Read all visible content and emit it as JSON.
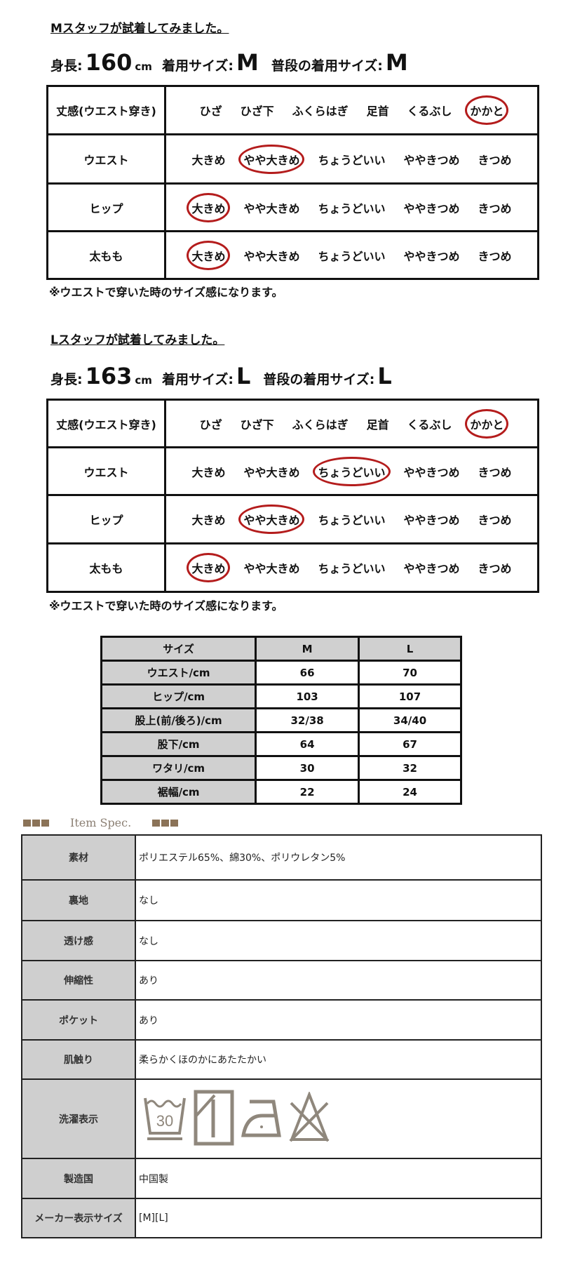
{
  "fit_sections": [
    {
      "title": "Mスタッフが試着してみました。",
      "height_label": "身長:",
      "height": "160",
      "height_unit": "cm",
      "size_label": "着用サイズ:",
      "size": "M",
      "usual_label": "普段の着用サイズ:",
      "usual": "M",
      "rows": [
        {
          "label": "丈感(ウエスト穿き)",
          "options": [
            "ひざ",
            "ひざ下",
            "ふくらはぎ",
            "足首",
            "くるぶし",
            "かかと"
          ],
          "selected": 5
        },
        {
          "label": "ウエスト",
          "options": [
            "大きめ",
            "やや大きめ",
            "ちょうどいい",
            "ややきつめ",
            "きつめ"
          ],
          "selected": 1
        },
        {
          "label": "ヒップ",
          "options": [
            "大きめ",
            "やや大きめ",
            "ちょうどいい",
            "ややきつめ",
            "きつめ"
          ],
          "selected": 0
        },
        {
          "label": "太もも",
          "options": [
            "大きめ",
            "やや大きめ",
            "ちょうどいい",
            "ややきつめ",
            "きつめ"
          ],
          "selected": 0
        }
      ],
      "note": "※ウエストで穿いた時のサイズ感になります。"
    },
    {
      "title": "Lスタッフが試着してみました。",
      "height_label": "身長:",
      "height": "163",
      "height_unit": "cm",
      "size_label": "着用サイズ:",
      "size": "L",
      "usual_label": "普段の着用サイズ:",
      "usual": "L",
      "rows": [
        {
          "label": "丈感(ウエスト穿き)",
          "options": [
            "ひざ",
            "ひざ下",
            "ふくらはぎ",
            "足首",
            "くるぶし",
            "かかと"
          ],
          "selected": 5
        },
        {
          "label": "ウエスト",
          "options": [
            "大きめ",
            "やや大きめ",
            "ちょうどいい",
            "ややきつめ",
            "きつめ"
          ],
          "selected": 2
        },
        {
          "label": "ヒップ",
          "options": [
            "大きめ",
            "やや大きめ",
            "ちょうどいい",
            "ややきつめ",
            "きつめ"
          ],
          "selected": 1
        },
        {
          "label": "太もも",
          "options": [
            "大きめ",
            "やや大きめ",
            "ちょうどいい",
            "ややきつめ",
            "きつめ"
          ],
          "selected": 0
        }
      ],
      "note": "※ウエストで穿いた時のサイズ感になります。"
    }
  ],
  "size_table": {
    "headers": [
      "サイズ",
      "M",
      "L"
    ],
    "rows": [
      [
        "ウエスト/cm",
        "66",
        "70"
      ],
      [
        "ヒップ/cm",
        "103",
        "107"
      ],
      [
        "股上(前/後ろ)/cm",
        "32/38",
        "34/40"
      ],
      [
        "股下/cm",
        "64",
        "67"
      ],
      [
        "ワタリ/cm",
        "30",
        "32"
      ],
      [
        "裾幅/cm",
        "22",
        "24"
      ]
    ]
  },
  "spec": {
    "heading": "Item Spec.",
    "rows": [
      {
        "label": "素材",
        "value": "ポリエステル65%、綿30%、ポリウレタン5%"
      },
      {
        "label": "裏地",
        "value": "なし"
      },
      {
        "label": "透け感",
        "value": "なし"
      },
      {
        "label": "伸縮性",
        "value": "あり"
      },
      {
        "label": "ポケット",
        "value": "あり"
      },
      {
        "label": "肌触り",
        "value": "柔らかくほのかにあたたかい"
      },
      {
        "label": "洗濯表示",
        "icons": [
          "wash-30-icon",
          "drip-dry-shade-icon",
          "iron-low-icon",
          "no-bleach-icon"
        ],
        "wash_temp": "30"
      },
      {
        "label": "製造国",
        "value": "中国製"
      },
      {
        "label": "メーカー表示サイズ",
        "value": "[M][L]"
      }
    ]
  },
  "colors": {
    "circle": "#b41c1c",
    "accent": "#8b7358",
    "icon": "#8f877c",
    "label_bg": "#d0d0d0"
  }
}
